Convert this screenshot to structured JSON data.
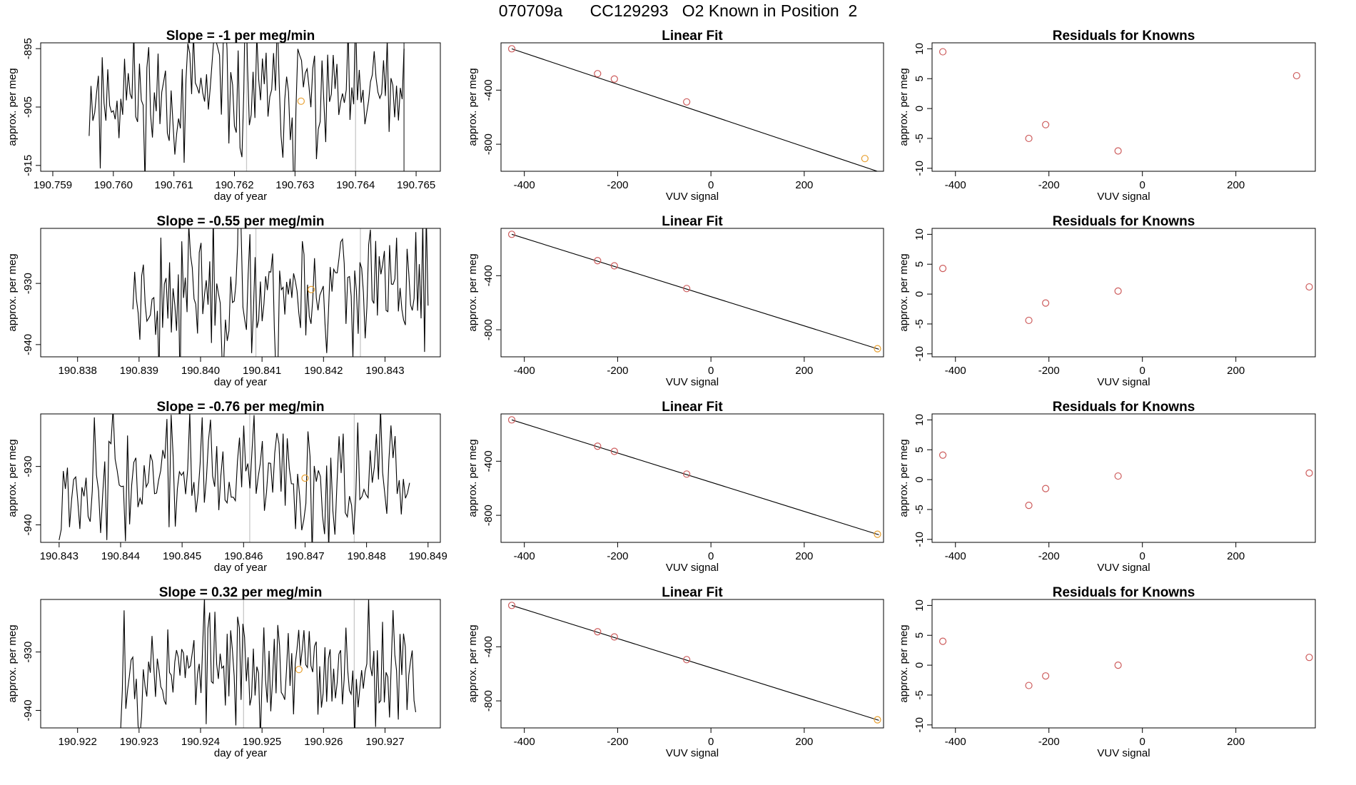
{
  "page": {
    "title": "070709a      CC129293   O2 Known in Position  2"
  },
  "colors": {
    "line": "#000000",
    "marker_known": "#cd5c5c",
    "marker_highlight": "#e8a030",
    "reference_line": "#c8c8c8"
  },
  "chart_data": [
    {
      "type": "line",
      "role": "timeseries",
      "title": "Slope =  -1  per meg/min",
      "xlabel": "day of year",
      "ylabel": "approx. per meg",
      "xlim": [
        190.7588,
        190.7654
      ],
      "ylim": [
        -916,
        -894
      ],
      "xticks": [
        "190.759",
        "190.760",
        "190.761",
        "190.762",
        "190.763",
        "190.764",
        "190.765"
      ],
      "xtick_values": [
        190.759,
        190.76,
        190.761,
        190.762,
        190.763,
        190.764,
        190.765
      ],
      "yticks": [
        "-915",
        "-905",
        "-895"
      ],
      "ytick_values": [
        -915,
        -905,
        -895
      ],
      "series_x_range": [
        190.7596,
        190.7648
      ],
      "series_center": -903,
      "series_amplitude": 5.5,
      "series_seed": 11,
      "vlines": [
        190.7622,
        190.764,
        190.7648
      ],
      "highlight_point": {
        "x": 190.7631,
        "y": -904
      }
    },
    {
      "type": "line",
      "role": "linear_fit",
      "title": "Linear Fit",
      "xlabel": "VUV signal",
      "ylabel": "approx. per meg",
      "xlim": [
        -450,
        370
      ],
      "ylim": [
        -1000,
        -50
      ],
      "xticks": [
        "-400",
        "-200",
        "0",
        "200"
      ],
      "xtick_values": [
        -400,
        -200,
        0,
        200
      ],
      "yticks": [
        "-800",
        "-400"
      ],
      "ytick_values": [
        -800,
        -400
      ],
      "fit_line": {
        "x": [
          -427,
          360
        ],
        "y": [
          -94,
          -1004
        ]
      },
      "points": {
        "x": [
          -427,
          -243,
          -207,
          -52,
          330
        ],
        "y": [
          -94,
          -278,
          -318,
          -487,
          -906
        ]
      },
      "highlight_index": 4
    },
    {
      "type": "scatter",
      "role": "residuals",
      "title": "Residuals for Knowns",
      "xlabel": "VUV signal",
      "ylabel": "approx. per meg",
      "xlim": [
        -450,
        370
      ],
      "ylim": [
        -10.5,
        11
      ],
      "xticks": [
        "-400",
        "-200",
        "0",
        "200"
      ],
      "xtick_values": [
        -400,
        -200,
        0,
        200
      ],
      "yticks": [
        "-10",
        "-5",
        "0",
        "5",
        "10"
      ],
      "ytick_values": [
        -10,
        -5,
        0,
        5,
        10
      ],
      "points": {
        "x": [
          -427,
          -243,
          -207,
          -52,
          330
        ],
        "y": [
          9.5,
          -5,
          -2.7,
          -7.1,
          5.5
        ]
      }
    },
    {
      "type": "line",
      "role": "timeseries",
      "title": "Slope =  -0.55  per meg/min",
      "xlabel": "day of year",
      "ylabel": "approx. per meg",
      "xlim": [
        190.8374,
        190.8439
      ],
      "ylim": [
        -942,
        -921
      ],
      "xticks": [
        "190.838",
        "190.839",
        "190.840",
        "190.841",
        "190.842",
        "190.843"
      ],
      "xtick_values": [
        190.838,
        190.839,
        190.84,
        190.841,
        190.842,
        190.843
      ],
      "yticks": [
        "-940",
        "-930"
      ],
      "ytick_values": [
        -940,
        -930
      ],
      "series_x_range": [
        190.8389,
        190.8437
      ],
      "series_center": -931,
      "series_amplitude": 5,
      "series_seed": 23,
      "vlines": [
        190.8409,
        190.8426
      ],
      "highlight_point": {
        "x": 190.8418,
        "y": -931
      }
    },
    {
      "type": "line",
      "role": "linear_fit",
      "title": "Linear Fit",
      "xlabel": "VUV signal",
      "ylabel": "approx. per meg",
      "xlim": [
        -450,
        370
      ],
      "ylim": [
        -1000,
        -50
      ],
      "xticks": [
        "-400",
        "-200",
        "0",
        "200"
      ],
      "xtick_values": [
        -400,
        -200,
        0,
        200
      ],
      "yticks": [
        "-800",
        "-400"
      ],
      "ytick_values": [
        -800,
        -400
      ],
      "fit_line": {
        "x": [
          -427,
          360
        ],
        "y": [
          -94,
          -944
        ]
      },
      "points": {
        "x": [
          -427,
          -243,
          -207,
          -52,
          357
        ],
        "y": [
          -94,
          -289,
          -327,
          -495,
          -940
        ]
      },
      "highlight_index": 4
    },
    {
      "type": "scatter",
      "role": "residuals",
      "title": "Residuals for Knowns",
      "xlabel": "VUV signal",
      "ylabel": "approx. per meg",
      "xlim": [
        -450,
        370
      ],
      "ylim": [
        -10.5,
        11
      ],
      "xticks": [
        "-400",
        "-200",
        "0",
        "200"
      ],
      "xtick_values": [
        -400,
        -200,
        0,
        200
      ],
      "yticks": [
        "-10",
        "-5",
        "0",
        "5",
        "10"
      ],
      "ytick_values": [
        -10,
        -5,
        0,
        5,
        10
      ],
      "points": {
        "x": [
          -427,
          -243,
          -207,
          -52,
          357
        ],
        "y": [
          4.3,
          -4.4,
          -1.5,
          0.5,
          1.2
        ]
      }
    },
    {
      "type": "line",
      "role": "timeseries",
      "title": "Slope =  -0.76  per meg/min",
      "xlabel": "day of year",
      "ylabel": "approx. per meg",
      "xlim": [
        190.8427,
        190.8492
      ],
      "ylim": [
        -943,
        -921
      ],
      "xticks": [
        "190.843",
        "190.844",
        "190.845",
        "190.846",
        "190.847",
        "190.848",
        "190.849"
      ],
      "xtick_values": [
        190.843,
        190.844,
        190.845,
        190.846,
        190.847,
        190.848,
        190.849
      ],
      "yticks": [
        "-940",
        "-930"
      ],
      "ytick_values": [
        -940,
        -930
      ],
      "series_x_range": [
        190.843,
        190.8487
      ],
      "series_center": -932,
      "series_amplitude": 5,
      "series_seed": 37,
      "vlines": [
        190.8461,
        190.8478
      ],
      "highlight_point": {
        "x": 190.847,
        "y": -932
      }
    },
    {
      "type": "line",
      "role": "linear_fit",
      "title": "Linear Fit",
      "xlabel": "VUV signal",
      "ylabel": "approx. per meg",
      "xlim": [
        -450,
        370
      ],
      "ylim": [
        -1000,
        -50
      ],
      "xticks": [
        "-400",
        "-200",
        "0",
        "200"
      ],
      "xtick_values": [
        -400,
        -200,
        0,
        200
      ],
      "yticks": [
        "-800",
        "-400"
      ],
      "ytick_values": [
        -800,
        -400
      ],
      "fit_line": {
        "x": [
          -427,
          360
        ],
        "y": [
          -94,
          -944
        ]
      },
      "points": {
        "x": [
          -427,
          -243,
          -207,
          -52,
          357
        ],
        "y": [
          -94,
          -289,
          -327,
          -495,
          -940
        ]
      },
      "highlight_index": 4
    },
    {
      "type": "scatter",
      "role": "residuals",
      "title": "Residuals for Knowns",
      "xlabel": "VUV signal",
      "ylabel": "approx. per meg",
      "xlim": [
        -450,
        370
      ],
      "ylim": [
        -10.5,
        11
      ],
      "xticks": [
        "-400",
        "-200",
        "0",
        "200"
      ],
      "xtick_values": [
        -400,
        -200,
        0,
        200
      ],
      "yticks": [
        "-10",
        "-5",
        "0",
        "5",
        "10"
      ],
      "ytick_values": [
        -10,
        -5,
        0,
        5,
        10
      ],
      "points": {
        "x": [
          -427,
          -243,
          -207,
          -52,
          357
        ],
        "y": [
          4.1,
          -4.3,
          -1.5,
          0.6,
          1.1
        ]
      }
    },
    {
      "type": "line",
      "role": "timeseries",
      "title": "Slope =  0.32  per meg/min",
      "xlabel": "day of year",
      "ylabel": "approx. per meg",
      "xlim": [
        190.9214,
        190.9279
      ],
      "ylim": [
        -943,
        -921
      ],
      "xticks": [
        "190.922",
        "190.923",
        "190.924",
        "190.925",
        "190.926",
        "190.927"
      ],
      "xtick_values": [
        190.922,
        190.923,
        190.924,
        190.925,
        190.926,
        190.927
      ],
      "yticks": [
        "-940",
        "-930"
      ],
      "ytick_values": [
        -940,
        -930
      ],
      "series_x_range": [
        190.9227,
        190.9275
      ],
      "series_center": -933,
      "series_amplitude": 5,
      "series_seed": 53,
      "vlines": [
        190.9247,
        190.9265
      ],
      "highlight_point": {
        "x": 190.9256,
        "y": -933
      }
    },
    {
      "type": "line",
      "role": "linear_fit",
      "title": "Linear Fit",
      "xlabel": "VUV signal",
      "ylabel": "approx. per meg",
      "xlim": [
        -450,
        370
      ],
      "ylim": [
        -1000,
        -50
      ],
      "xticks": [
        "-400",
        "-200",
        "0",
        "200"
      ],
      "xtick_values": [
        -400,
        -200,
        0,
        200
      ],
      "yticks": [
        "-800",
        "-400"
      ],
      "ytick_values": [
        -800,
        -400
      ],
      "fit_line": {
        "x": [
          -427,
          360
        ],
        "y": [
          -94,
          -944
        ]
      },
      "points": {
        "x": [
          -427,
          -243,
          -207,
          -52,
          357
        ],
        "y": [
          -94,
          -289,
          -327,
          -495,
          -940
        ]
      },
      "highlight_index": 4
    },
    {
      "type": "scatter",
      "role": "residuals",
      "title": "Residuals for Knowns",
      "xlabel": "VUV signal",
      "ylabel": "approx. per meg",
      "xlim": [
        -450,
        370
      ],
      "ylim": [
        -10.5,
        11
      ],
      "xticks": [
        "-400",
        "-200",
        "0",
        "200"
      ],
      "xtick_values": [
        -400,
        -200,
        0,
        200
      ],
      "yticks": [
        "-10",
        "-5",
        "0",
        "5",
        "10"
      ],
      "ytick_values": [
        -10,
        -5,
        0,
        5,
        10
      ],
      "points": {
        "x": [
          -427,
          -243,
          -207,
          -52,
          357
        ],
        "y": [
          4.0,
          -3.4,
          -1.8,
          0.0,
          1.3
        ]
      }
    }
  ]
}
